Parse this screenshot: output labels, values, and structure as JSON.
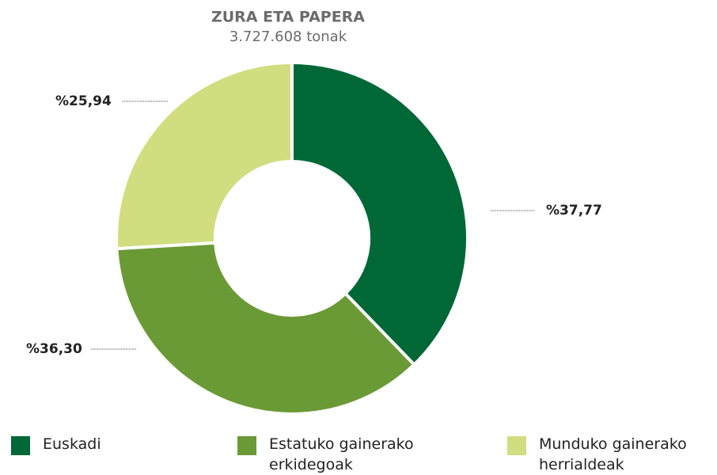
{
  "chart_data": {
    "type": "pie",
    "title": "ZURA ETA PAPERA",
    "subtitle": "3.727.608 tonak",
    "categories": [
      "Euskadi",
      "Estatuko gainerako erkidegoak",
      "Munduko gainerako herrialdeak"
    ],
    "values": [
      37.77,
      36.3,
      25.94
    ],
    "value_labels": [
      "%37,77",
      "%36,30",
      "%25,94"
    ],
    "colors": [
      "#006837",
      "#6a9a35",
      "#d0de80"
    ],
    "donut": true
  }
}
